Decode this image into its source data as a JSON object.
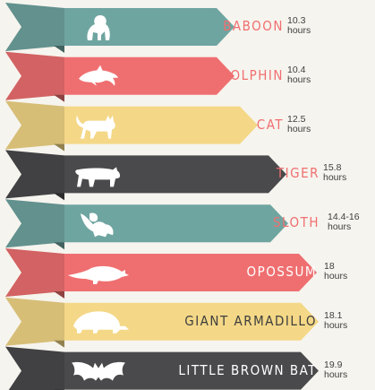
{
  "colors": {
    "teal": "#6fa5a1",
    "coral": "#ef6f70",
    "yellow": "#f4d887",
    "charcoal": "#4a4a4c",
    "label_pink": "#ef6f70",
    "text_dark": "#3e3e3e",
    "white": "#ffffff"
  },
  "animals": [
    {
      "name": "BABOON",
      "hours": "10.3",
      "unit": "hours",
      "color": "teal",
      "icon": "baboon-icon"
    },
    {
      "name": "DOLPHIN",
      "hours": "10.4",
      "unit": "hours",
      "color": "coral",
      "icon": "dolphin-icon"
    },
    {
      "name": "CAT",
      "hours": "12.5",
      "unit": "hours",
      "color": "yellow",
      "icon": "cat-icon"
    },
    {
      "name": "TIGER",
      "hours": "15.8",
      "unit": "hours",
      "color": "charcoal",
      "icon": "tiger-icon"
    },
    {
      "name": "SLOTH",
      "hours": "14.4-16",
      "unit": "hours",
      "color": "teal",
      "icon": "sloth-icon"
    },
    {
      "name": "OPOSSUM",
      "hours": "18",
      "unit": "hours",
      "color": "coral",
      "icon": "opossum-icon"
    },
    {
      "name": "GIANT ARMADILLO",
      "hours": "18.1",
      "unit": "hours",
      "color": "yellow",
      "icon": "armadillo-icon"
    },
    {
      "name": "LITTLE BROWN BAT",
      "hours": "19.9",
      "unit": "hours",
      "color": "charcoal",
      "icon": "bat-icon"
    }
  ]
}
